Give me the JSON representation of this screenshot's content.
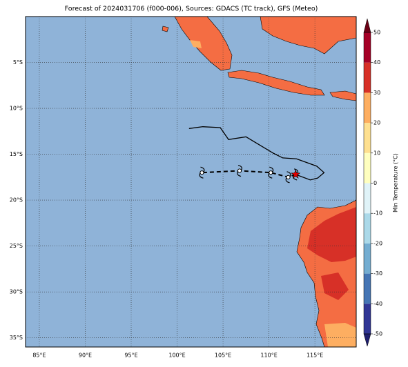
{
  "title": "Forecast of 2024031706 (f000-006), Sources: GDACS (TC track), GFS (Meteo)",
  "map": {
    "lonlim": [
      83.5,
      119.5
    ],
    "latlim": [
      -36,
      0
    ],
    "lonticks": [
      {
        "value": 85,
        "label": "85°E"
      },
      {
        "value": 90,
        "label": "90°E"
      },
      {
        "value": 95,
        "label": "95°E"
      },
      {
        "value": 100,
        "label": "100°E"
      },
      {
        "value": 105,
        "label": "105°E"
      },
      {
        "value": 110,
        "label": "110°E"
      },
      {
        "value": 115,
        "label": "115°E"
      }
    ],
    "latticks": [
      {
        "value": -5,
        "label": "5°S"
      },
      {
        "value": -10,
        "label": "10°S"
      },
      {
        "value": -15,
        "label": "15°S"
      },
      {
        "value": -20,
        "label": "20°S"
      },
      {
        "value": -25,
        "label": "25°S"
      },
      {
        "value": -30,
        "label": "30°S"
      },
      {
        "value": -35,
        "label": "35°S"
      }
    ],
    "past_track": {
      "lon": [
        101.3,
        102.8,
        104.7,
        105.6,
        107.5,
        109.0,
        110.5,
        111.5,
        113.0,
        115.2,
        116.0,
        115.3,
        114.5,
        112.9
      ],
      "lat": [
        -12.2,
        -12.0,
        -12.1,
        -13.4,
        -13.1,
        -14.0,
        -14.9,
        -15.4,
        -15.5,
        -16.3,
        -17.0,
        -17.6,
        -17.8,
        -17.2
      ]
    },
    "forecast_track": {
      "lon": [
        112.9,
        112.1,
        110.2,
        106.8,
        102.7
      ],
      "lat": [
        -17.2,
        -17.5,
        -17.0,
        -16.8,
        -17.0
      ]
    },
    "current_position": {
      "lon": 112.9,
      "lat": -17.2
    }
  },
  "colorbar": {
    "label": "Min Temperature (°C)",
    "range": [
      -50,
      50
    ],
    "ticks": [
      -50,
      -40,
      -30,
      -20,
      -10,
      0,
      10,
      20,
      30,
      40,
      50
    ],
    "colors": [
      "#313695",
      "#4575b4",
      "#74add1",
      "#abd9e9",
      "#e0f3f8",
      "#ffffbf",
      "#fee090",
      "#fdae61",
      "#d73027",
      "#a50026"
    ],
    "extend_colors": [
      "#1f1f6e",
      "#6b0015"
    ]
  }
}
